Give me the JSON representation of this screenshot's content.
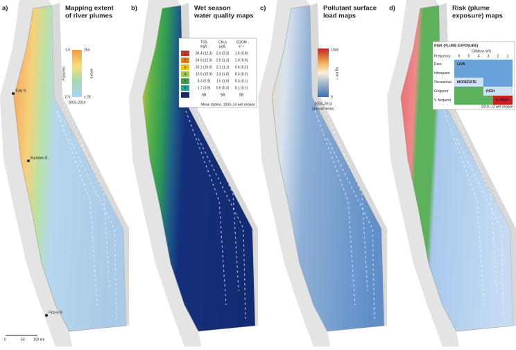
{
  "panels": [
    {
      "label": "a)",
      "title": [
        "Mapping extent",
        "of river plumes"
      ],
      "legend": {
        "top_left": "1.0",
        "bottom_left": "0.5",
        "top_right": "264",
        "bottom_right": "≤ 28",
        "axis_left": "F(plume)",
        "axis_right": "weeks",
        "period": "2003–2014"
      },
      "places": [
        "Tully R.",
        "Burdekin R.",
        "Fitzroy R."
      ],
      "scale": [
        "0",
        "50",
        "100 km"
      ]
    },
    {
      "label": "b)",
      "title": [
        "Wet season",
        "water quality maps"
      ],
      "table": {
        "header": [
          "TSS",
          "Chl-a",
          "CDOM"
        ],
        "units": [
          "mg/L",
          "µg/L",
          "m⁻¹"
        ],
        "rows": [
          [
            "1",
            "36.4 (12.3)",
            "2.3 (2.3)",
            "1.6 (0.8)"
          ],
          [
            "2",
            "24.9 (12.3)",
            "2.0 (1.2)",
            "1.0 (0.6)"
          ],
          [
            "3",
            "20.1 (16.0)",
            "2.1 (1.1)",
            "0.6 (0.2)"
          ],
          [
            "4",
            "10.9 (10.9)",
            "1.3 (1.0)",
            "0.3 (0.2)"
          ],
          [
            "5",
            "5.3 (5.9)",
            "1.0 (1.0)",
            "0.3 (0.1)"
          ],
          [
            "6",
            "1.7 (3.9)",
            "0.5 (0.3)",
            "0.1 (0.1)"
          ],
          [
            "0",
            "SB",
            "SB",
            "SB"
          ]
        ],
        "note": "Mean (stdev), 2003–14 wet season"
      }
    },
    {
      "label": "c)",
      "title": [
        "Pollutant surface",
        "load maps"
      ],
      "legend": {
        "max": "1046",
        "min": "0",
        "unit": "kg km⁻²",
        "period": [
          "2003–2013",
          "(annual mean)"
        ]
      }
    },
    {
      "label": "d)",
      "title": [
        "Risk (plume",
        "exposure) maps"
      ],
      "table": {
        "heading": "RISK (PLUME EXPOSURE)",
        "corner": "Frequency",
        "col_title": "Cl/Mean WS",
        "cols": [
          "6",
          "5",
          "4",
          "3",
          "2",
          "1"
        ],
        "rows": [
          "Rare",
          "Infrequent",
          "Occasional",
          "Frequent",
          "V. frequent"
        ],
        "levels": [
          "LOW",
          "MODERATE",
          "HIGH",
          "V. HIGH"
        ],
        "note": "2010–13 wet season"
      }
    }
  ]
}
